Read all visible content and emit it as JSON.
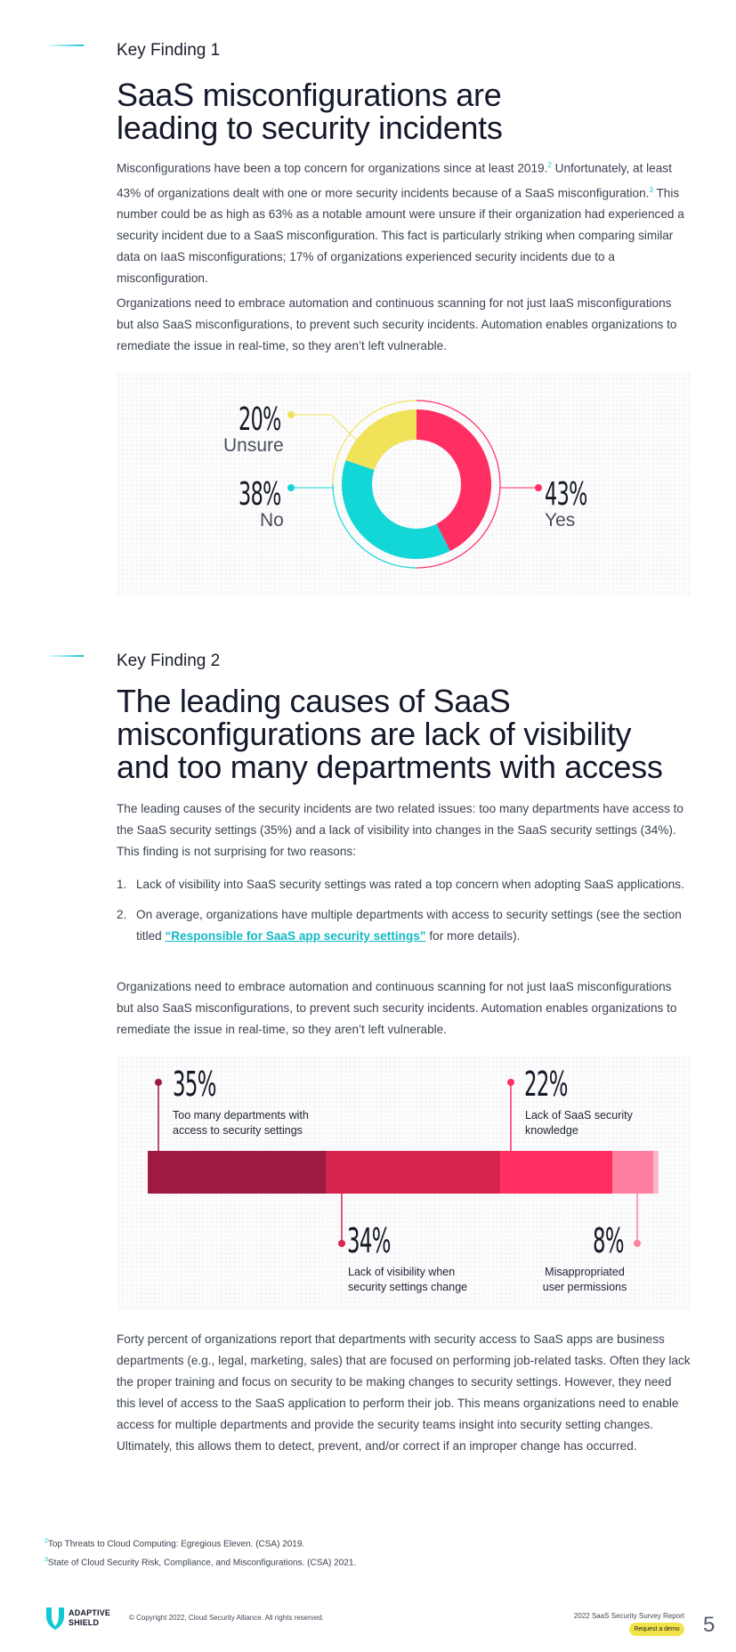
{
  "finding1": {
    "kicker": "Key Finding 1",
    "title_line1": "SaaS misconfigurations are",
    "title_line2": "leading to security incidents",
    "para1_a": "Misconfigurations have been a top concern for organizations since at least 2019.",
    "para1_sup1": "2",
    "para1_b": " Unfortunately, at least 43% of organizations dealt with one or more security incidents because of a SaaS misconfiguration.",
    "para1_sup2": "3",
    "para1_c": " This number could be as high as 63% as a notable amount were unsure if their organization had experienced a security incident due to a SaaS misconfiguration. This fact is particularly striking when comparing similar data on IaaS misconfigurations; 17% of organizations experienced security incidents due to a misconfiguration.",
    "para2": "Organizations need to embrace automation and continuous scanning for not just IaaS misconfigurations but also SaaS misconfigurations, to prevent such security incidents. Automation enables organizations to remediate the issue in real-time, so they aren’t left vulnerable."
  },
  "finding2": {
    "kicker": "Key Finding 2",
    "title_line1": "The leading causes of SaaS",
    "title_line2": "misconfigurations are lack of visibility",
    "title_line3": "and too many departments with access",
    "para1": "The leading causes of the security incidents are two related issues: too many departments have access to the SaaS security settings (35%) and a lack of visibility into changes in the SaaS security settings (34%). This finding is not surprising for two reasons:",
    "list": [
      {
        "num": "1.",
        "text": "Lack of visibility into SaaS security settings was rated a top concern when adopting SaaS applications."
      },
      {
        "num": "2.",
        "text_a": "On average, organizations have multiple departments with access to security settings (see the section titled ",
        "link": "“Responsible for SaaS app security settings”",
        "text_b": " for more details)."
      }
    ],
    "para2": "Organizations need to embrace automation and continuous scanning for not just IaaS misconfigurations but also SaaS misconfigurations, to prevent such security incidents. Automation enables organizations to remediate the issue in real-time, so they aren’t left vulnerable.",
    "para3": "Forty percent of organizations report that departments with security access to SaaS apps are business departments (e.g., legal, marketing, sales) that are focused on performing job-related tasks. Often they lack the proper training and focus on security to be making changes to security settings. However, they need this level of access to the SaaS application to perform their job.  This means organizations need to enable access for multiple departments and provide the security teams insight into security setting changes. Ultimately, this allows them to detect, prevent, and/or correct if an improper change has occurred."
  },
  "chart_data": [
    {
      "type": "pie",
      "categories": [
        "Yes",
        "No",
        "Unsure"
      ],
      "values": [
        43,
        38,
        20
      ],
      "value_labels": [
        "43%",
        "38%",
        "20%"
      ],
      "colors": [
        "#ff2e63",
        "#13d6d6",
        "#f0e35a"
      ]
    },
    {
      "type": "bar",
      "categories": [
        "Too many departments with access to security settings",
        "Lack of visibility when security settings change",
        "Lack of SaaS security knowledge",
        "Misappropriated user permissions"
      ],
      "values": [
        35,
        34,
        22,
        8
      ],
      "value_labels": [
        "35%",
        "34%",
        "22%",
        "8%"
      ],
      "colors": [
        "#9e1a40",
        "#d8254f",
        "#ff2e63",
        "#ff7fa0",
        "#ffb5c8"
      ]
    }
  ],
  "footnotes": {
    "n2_sup": "2",
    "n2": "Top Threats to Cloud Computing: Egregious Eleven. (CSA) 2019.",
    "n3_sup": "3",
    "n3": "State of Cloud Security Risk, Compliance, and Misconfigurations. (CSA) 2021."
  },
  "footer": {
    "logo_line1": "ADAPTIVE",
    "logo_line2": "SHIELD",
    "copyright": "© Copyright 2022, Cloud Security Alliance. All rights reserved.",
    "report": "2022 SaaS Security Survey Report",
    "demo_button": "Request a demo",
    "page_number": "5"
  }
}
